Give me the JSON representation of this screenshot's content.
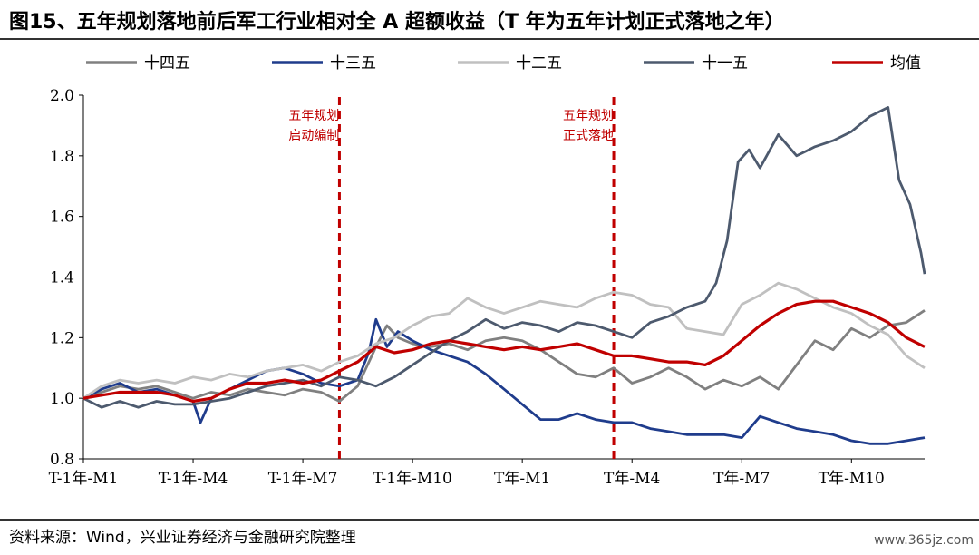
{
  "title": "图15、五年规划落地前后军工行业相对全 A 超额收益（T 年为五年计划正式落地之年）",
  "source": "资料来源：Wind，兴业证券经济与金融研究院整理",
  "watermark": "www.365jz.com",
  "chart_data": {
    "type": "line",
    "title": "图15、五年规划落地前后军工行业相对全 A 超额收益（T 年为五年计划正式落地之年）",
    "xlabel": "",
    "ylabel": "",
    "x_ticks": [
      "T-1年-M1",
      "T-1年-M4",
      "T-1年-M7",
      "T-1年-M10",
      "T年-M1",
      "T年-M4",
      "T年-M7",
      "T年-M10"
    ],
    "xlim": [
      0,
      23
    ],
    "ylim": [
      0.8,
      2.0
    ],
    "y_ticks": [
      "0.8",
      "1.0",
      "1.2",
      "1.4",
      "1.6",
      "1.8",
      "2.0"
    ],
    "legend_position": "top",
    "grid": false,
    "series": [
      {
        "name": "十四五",
        "color": "#808080",
        "points": [
          [
            0,
            1.0
          ],
          [
            0.5,
            1.02
          ],
          [
            1,
            1.04
          ],
          [
            1.5,
            1.03
          ],
          [
            2,
            1.04
          ],
          [
            2.5,
            1.02
          ],
          [
            3,
            1.0
          ],
          [
            3.5,
            1.02
          ],
          [
            4,
            1.01
          ],
          [
            4.5,
            1.03
          ],
          [
            5,
            1.02
          ],
          [
            5.5,
            1.01
          ],
          [
            6,
            1.03
          ],
          [
            6.5,
            1.02
          ],
          [
            7,
            0.99
          ],
          [
            7.5,
            1.04
          ],
          [
            8,
            1.17
          ],
          [
            8.3,
            1.24
          ],
          [
            8.6,
            1.2
          ],
          [
            9,
            1.18
          ],
          [
            9.5,
            1.17
          ],
          [
            10,
            1.18
          ],
          [
            10.5,
            1.16
          ],
          [
            11,
            1.19
          ],
          [
            11.5,
            1.2
          ],
          [
            12,
            1.19
          ],
          [
            12.5,
            1.16
          ],
          [
            13,
            1.12
          ],
          [
            13.5,
            1.08
          ],
          [
            14,
            1.07
          ],
          [
            14.5,
            1.1
          ],
          [
            15,
            1.05
          ],
          [
            15.5,
            1.07
          ],
          [
            16,
            1.1
          ],
          [
            16.5,
            1.07
          ],
          [
            17,
            1.03
          ],
          [
            17.5,
            1.06
          ],
          [
            18,
            1.04
          ],
          [
            18.5,
            1.07
          ],
          [
            19,
            1.03
          ],
          [
            19.5,
            1.11
          ],
          [
            20,
            1.19
          ],
          [
            20.5,
            1.16
          ],
          [
            21,
            1.23
          ],
          [
            21.5,
            1.2
          ],
          [
            22,
            1.24
          ],
          [
            22.5,
            1.25
          ],
          [
            23,
            1.29
          ]
        ]
      },
      {
        "name": "十三五",
        "color": "#1f3c8c",
        "points": [
          [
            0,
            1.0
          ],
          [
            0.5,
            1.03
          ],
          [
            1,
            1.05
          ],
          [
            1.5,
            1.02
          ],
          [
            2,
            1.03
          ],
          [
            2.5,
            1.01
          ],
          [
            3,
            0.99
          ],
          [
            3.2,
            0.92
          ],
          [
            3.5,
            1.0
          ],
          [
            4,
            1.03
          ],
          [
            4.5,
            1.06
          ],
          [
            5,
            1.09
          ],
          [
            5.5,
            1.1
          ],
          [
            6,
            1.08
          ],
          [
            6.5,
            1.05
          ],
          [
            7,
            1.04
          ],
          [
            7.5,
            1.06
          ],
          [
            7.8,
            1.15
          ],
          [
            8,
            1.26
          ],
          [
            8.3,
            1.17
          ],
          [
            8.6,
            1.22
          ],
          [
            9,
            1.19
          ],
          [
            9.5,
            1.16
          ],
          [
            10,
            1.14
          ],
          [
            10.5,
            1.12
          ],
          [
            11,
            1.08
          ],
          [
            11.5,
            1.03
          ],
          [
            12,
            0.98
          ],
          [
            12.5,
            0.93
          ],
          [
            13,
            0.93
          ],
          [
            13.5,
            0.95
          ],
          [
            14,
            0.93
          ],
          [
            14.5,
            0.92
          ],
          [
            15,
            0.92
          ],
          [
            15.5,
            0.9
          ],
          [
            16,
            0.89
          ],
          [
            16.5,
            0.88
          ],
          [
            17,
            0.88
          ],
          [
            17.5,
            0.88
          ],
          [
            18,
            0.87
          ],
          [
            18.5,
            0.94
          ],
          [
            19,
            0.92
          ],
          [
            19.5,
            0.9
          ],
          [
            20,
            0.89
          ],
          [
            20.5,
            0.88
          ],
          [
            21,
            0.86
          ],
          [
            21.5,
            0.85
          ],
          [
            22,
            0.85
          ],
          [
            22.5,
            0.86
          ],
          [
            23,
            0.87
          ]
        ]
      },
      {
        "name": "十二五",
        "color": "#c0c0c0",
        "points": [
          [
            0,
            1.0
          ],
          [
            0.5,
            1.04
          ],
          [
            1,
            1.06
          ],
          [
            1.5,
            1.05
          ],
          [
            2,
            1.06
          ],
          [
            2.5,
            1.05
          ],
          [
            3,
            1.07
          ],
          [
            3.5,
            1.06
          ],
          [
            4,
            1.08
          ],
          [
            4.5,
            1.07
          ],
          [
            5,
            1.09
          ],
          [
            5.5,
            1.1
          ],
          [
            6,
            1.11
          ],
          [
            6.5,
            1.09
          ],
          [
            7,
            1.12
          ],
          [
            7.5,
            1.14
          ],
          [
            8,
            1.18
          ],
          [
            8.5,
            1.2
          ],
          [
            9,
            1.24
          ],
          [
            9.5,
            1.27
          ],
          [
            10,
            1.28
          ],
          [
            10.5,
            1.33
          ],
          [
            11,
            1.3
          ],
          [
            11.5,
            1.28
          ],
          [
            12,
            1.3
          ],
          [
            12.5,
            1.32
          ],
          [
            13,
            1.31
          ],
          [
            13.5,
            1.3
          ],
          [
            14,
            1.33
          ],
          [
            14.5,
            1.35
          ],
          [
            15,
            1.34
          ],
          [
            15.5,
            1.31
          ],
          [
            16,
            1.3
          ],
          [
            16.5,
            1.23
          ],
          [
            17,
            1.22
          ],
          [
            17.5,
            1.21
          ],
          [
            18,
            1.31
          ],
          [
            18.5,
            1.34
          ],
          [
            19,
            1.38
          ],
          [
            19.5,
            1.36
          ],
          [
            20,
            1.33
          ],
          [
            20.5,
            1.3
          ],
          [
            21,
            1.28
          ],
          [
            21.5,
            1.24
          ],
          [
            22,
            1.21
          ],
          [
            22.5,
            1.14
          ],
          [
            23,
            1.1
          ]
        ]
      },
      {
        "name": "十一五",
        "color": "#4d5a6e",
        "points": [
          [
            0,
            1.0
          ],
          [
            0.5,
            0.97
          ],
          [
            1,
            0.99
          ],
          [
            1.5,
            0.97
          ],
          [
            2,
            0.99
          ],
          [
            2.5,
            0.98
          ],
          [
            3,
            0.98
          ],
          [
            3.5,
            0.99
          ],
          [
            4,
            1.0
          ],
          [
            4.5,
            1.02
          ],
          [
            5,
            1.04
          ],
          [
            5.5,
            1.05
          ],
          [
            6,
            1.06
          ],
          [
            6.5,
            1.04
          ],
          [
            7,
            1.07
          ],
          [
            7.5,
            1.06
          ],
          [
            8,
            1.04
          ],
          [
            8.5,
            1.07
          ],
          [
            9,
            1.11
          ],
          [
            9.5,
            1.15
          ],
          [
            10,
            1.19
          ],
          [
            10.5,
            1.22
          ],
          [
            11,
            1.26
          ],
          [
            11.5,
            1.23
          ],
          [
            12,
            1.25
          ],
          [
            12.5,
            1.24
          ],
          [
            13,
            1.22
          ],
          [
            13.5,
            1.25
          ],
          [
            14,
            1.24
          ],
          [
            14.5,
            1.22
          ],
          [
            15,
            1.2
          ],
          [
            15.5,
            1.25
          ],
          [
            16,
            1.27
          ],
          [
            16.5,
            1.3
          ],
          [
            17,
            1.32
          ],
          [
            17.3,
            1.38
          ],
          [
            17.6,
            1.52
          ],
          [
            17.9,
            1.78
          ],
          [
            18.2,
            1.82
          ],
          [
            18.5,
            1.76
          ],
          [
            19,
            1.87
          ],
          [
            19.5,
            1.8
          ],
          [
            20,
            1.83
          ],
          [
            20.5,
            1.85
          ],
          [
            21,
            1.88
          ],
          [
            21.5,
            1.93
          ],
          [
            22,
            1.96
          ],
          [
            22.3,
            1.72
          ],
          [
            22.6,
            1.64
          ],
          [
            22.9,
            1.48
          ],
          [
            23,
            1.41
          ]
        ]
      },
      {
        "name": "均值",
        "color": "#c00000",
        "points": [
          [
            0,
            1.0
          ],
          [
            0.5,
            1.01
          ],
          [
            1,
            1.02
          ],
          [
            1.5,
            1.02
          ],
          [
            2,
            1.02
          ],
          [
            2.5,
            1.01
          ],
          [
            3,
            0.99
          ],
          [
            3.5,
            1.0
          ],
          [
            4,
            1.03
          ],
          [
            4.5,
            1.05
          ],
          [
            5,
            1.05
          ],
          [
            5.5,
            1.06
          ],
          [
            6,
            1.05
          ],
          [
            6.5,
            1.06
          ],
          [
            7,
            1.09
          ],
          [
            7.5,
            1.12
          ],
          [
            8,
            1.17
          ],
          [
            8.5,
            1.15
          ],
          [
            9,
            1.16
          ],
          [
            9.5,
            1.18
          ],
          [
            10,
            1.19
          ],
          [
            10.5,
            1.18
          ],
          [
            11,
            1.17
          ],
          [
            11.5,
            1.16
          ],
          [
            12,
            1.17
          ],
          [
            12.5,
            1.16
          ],
          [
            13,
            1.17
          ],
          [
            13.5,
            1.18
          ],
          [
            14,
            1.16
          ],
          [
            14.5,
            1.14
          ],
          [
            15,
            1.14
          ],
          [
            15.5,
            1.13
          ],
          [
            16,
            1.12
          ],
          [
            16.5,
            1.12
          ],
          [
            17,
            1.11
          ],
          [
            17.5,
            1.14
          ],
          [
            18,
            1.19
          ],
          [
            18.5,
            1.24
          ],
          [
            19,
            1.28
          ],
          [
            19.5,
            1.31
          ],
          [
            20,
            1.32
          ],
          [
            20.5,
            1.32
          ],
          [
            21,
            1.3
          ],
          [
            21.5,
            1.28
          ],
          [
            22,
            1.25
          ],
          [
            22.5,
            1.2
          ],
          [
            23,
            1.17
          ]
        ]
      }
    ],
    "annotations": [
      {
        "x": 7,
        "lines": [
          "五年规划",
          "启动编制"
        ],
        "color": "#c00000"
      },
      {
        "x": 14.5,
        "lines": [
          "五年规划",
          "正式落地"
        ],
        "color": "#c00000"
      }
    ]
  }
}
